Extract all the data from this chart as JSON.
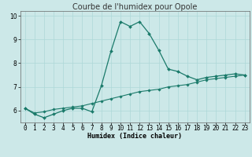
{
  "title": "Courbe de l'humidex pour Opole",
  "xlabel": "Humidex (Indice chaleur)",
  "background_color": "#cce8e8",
  "line_color": "#1a7a6a",
  "x_curve1": [
    0,
    1,
    2,
    3,
    4,
    5,
    6,
    7,
    8,
    9,
    10,
    11,
    12,
    13,
    14,
    15,
    16,
    17,
    18,
    19,
    20,
    21,
    22,
    23
  ],
  "y_curve1": [
    6.1,
    5.85,
    5.7,
    5.85,
    6.0,
    6.1,
    6.1,
    5.95,
    7.05,
    8.5,
    9.75,
    9.55,
    9.75,
    9.25,
    8.55,
    7.75,
    7.65,
    7.45,
    7.3,
    7.4,
    7.45,
    7.5,
    7.55,
    7.5
  ],
  "x_curve2": [
    0,
    1,
    2,
    3,
    4,
    5,
    6,
    7,
    8,
    9,
    10,
    11,
    12,
    13,
    14,
    15,
    16,
    17,
    18,
    19,
    20,
    21,
    22,
    23
  ],
  "y_curve2": [
    6.1,
    5.9,
    5.95,
    6.05,
    6.1,
    6.15,
    6.2,
    6.3,
    6.4,
    6.5,
    6.6,
    6.7,
    6.8,
    6.85,
    6.9,
    7.0,
    7.05,
    7.1,
    7.2,
    7.3,
    7.35,
    7.4,
    7.45,
    7.5
  ],
  "ylim": [
    5.5,
    10.2
  ],
  "xlim": [
    -0.5,
    23.5
  ],
  "yticks": [
    6,
    7,
    8,
    9,
    10
  ],
  "xticks": [
    0,
    1,
    2,
    3,
    4,
    5,
    6,
    7,
    8,
    9,
    10,
    11,
    12,
    13,
    14,
    15,
    16,
    17,
    18,
    19,
    20,
    21,
    22,
    23
  ],
  "grid_color": "#add8d8",
  "title_fontsize": 7,
  "axis_fontsize": 6,
  "tick_fontsize": 5.5
}
